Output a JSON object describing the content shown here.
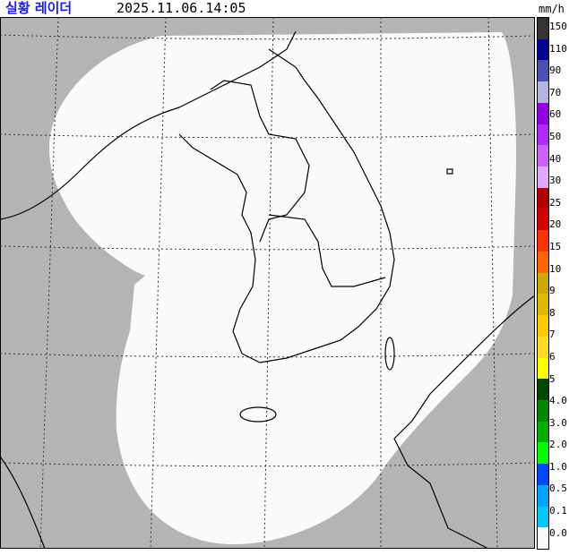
{
  "header": {
    "title": "실황 레이더",
    "timestamp": "2025.11.06.14:05",
    "unit": "mm/h"
  },
  "map": {
    "background_color": "#b4b4b4",
    "coverage_color": "#fafafa",
    "coastline_color": "#000000",
    "grid": "dotted lat/lon",
    "region": "Korean Peninsula",
    "precipitation": "none detected"
  },
  "legend": {
    "labels": [
      "150",
      "110",
      "90",
      "70",
      "60",
      "50",
      "40",
      "30",
      "25",
      "20",
      "15",
      "10",
      "9",
      "8",
      "7",
      "6",
      "5",
      "4.0",
      "3.0",
      "2.0",
      "1.0",
      "0.5",
      "0.1",
      "0.0"
    ],
    "colors": [
      "#333333",
      "#000390",
      "#4c4eb1",
      "#b3b4de",
      "#9300e4",
      "#b329ff",
      "#c963ff",
      "#e0a9ff",
      "#b40000",
      "#d20000",
      "#ff3200",
      "#ff6600",
      "#ccaa00",
      "#e0b900",
      "#f9cd00",
      "#ffdc1f",
      "#ffff00",
      "#004800",
      "#008700",
      "#00b000",
      "#00ff00",
      "#0047ff",
      "#00a3ff",
      "#00c8ff",
      "#fafafa"
    ]
  }
}
